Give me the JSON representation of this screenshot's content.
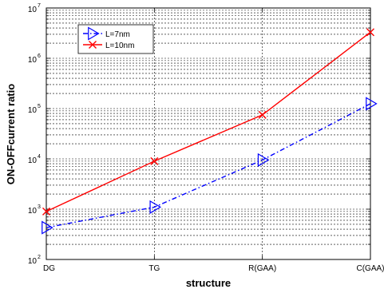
{
  "chart_data": {
    "type": "line",
    "categories": [
      "DG",
      "TG",
      "R(GAA)",
      "C(GAA)"
    ],
    "xlabel": "structure",
    "ylabel": "ON-OFFcurrent ratio",
    "yscale": "log",
    "ylim": [
      100,
      10000000
    ],
    "y_tick_base": "10",
    "y_tick_exponents": [
      "2",
      "3",
      "4",
      "5",
      "6",
      "7"
    ],
    "grid": true,
    "legend_position": "top-left",
    "series": [
      {
        "name": "L=7nm",
        "values": [
          430,
          1100,
          9500,
          125000
        ],
        "color": "#0000ff",
        "marker": "triangle-right",
        "line_style": "dash-dot"
      },
      {
        "name": "L=10nm",
        "values": [
          900,
          9000,
          75000,
          3300000
        ],
        "color": "#ff0000",
        "marker": "x",
        "line_style": "solid"
      }
    ]
  }
}
